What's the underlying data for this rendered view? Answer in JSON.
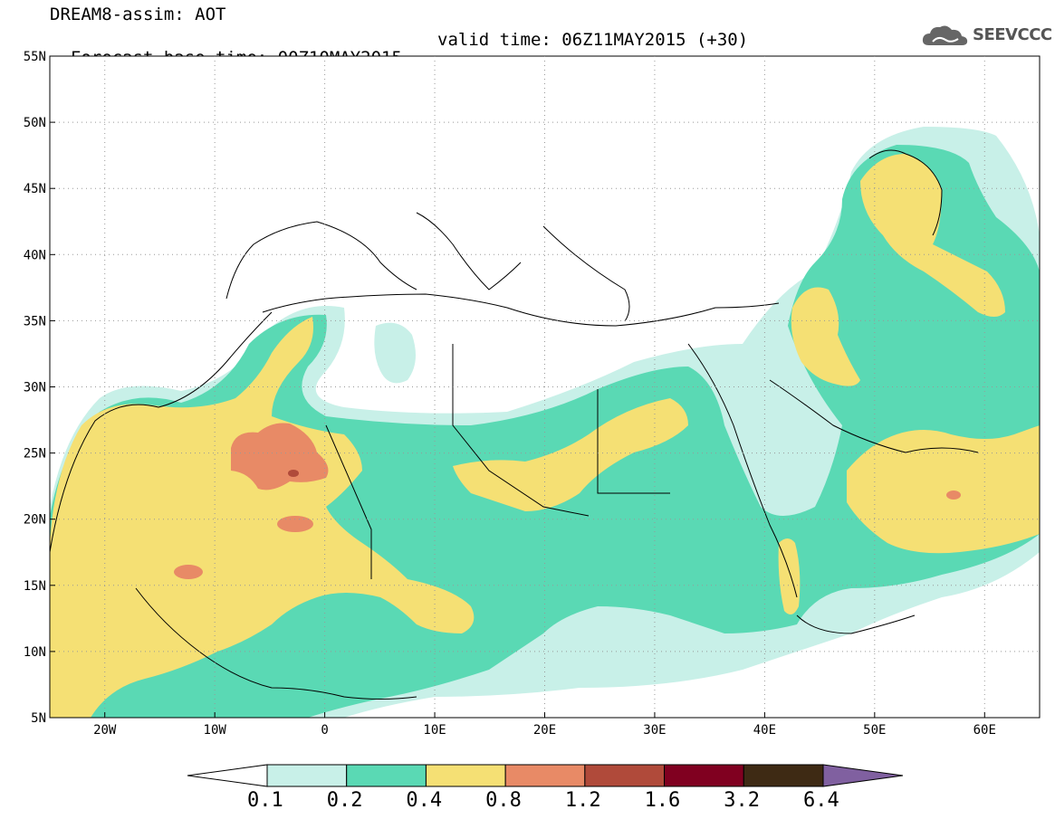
{
  "header": {
    "line1": "DREAM8-assim: AOT",
    "line2_base": "Forecast base time: 00Z10MAY2015",
    "line2_valid": "valid time: 06Z11MAY2015 (+30)",
    "logo_text": "SEEVCCC",
    "logo_icon": "cloud-icon"
  },
  "map": {
    "lat_labels": [
      "55N",
      "50N",
      "45N",
      "40N",
      "35N",
      "30N",
      "25N",
      "20N",
      "15N",
      "10N",
      "5N"
    ],
    "lon_labels": [
      "20W",
      "10W",
      "0",
      "10E",
      "20E",
      "30E",
      "40E",
      "50E",
      "60E"
    ],
    "lon_range": [
      -25,
      65
    ],
    "lat_range": [
      5,
      55
    ]
  },
  "colorbar": {
    "labels": [
      "0.1",
      "0.2",
      "0.4",
      "0.8",
      "1.2",
      "1.6",
      "3.2",
      "6.4"
    ],
    "colors": [
      "#ffffff",
      "#c8f0e8",
      "#5ad9b4",
      "#f5e074",
      "#e88a66",
      "#b04a3a",
      "#800020",
      "#3e2a14",
      "#8060a0"
    ]
  }
}
